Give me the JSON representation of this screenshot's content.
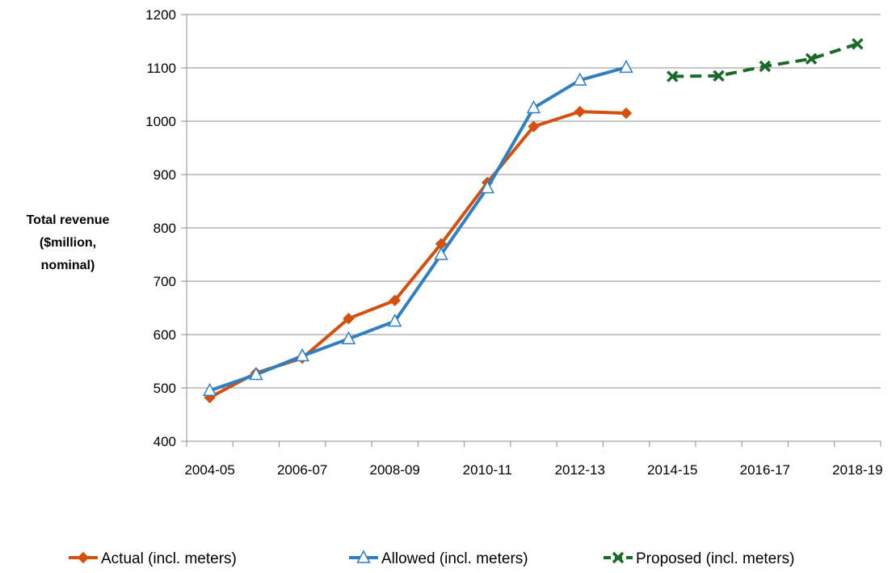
{
  "chart_data": {
    "type": "line",
    "title": "",
    "xlabel": "",
    "ylabel": "Total revenue ($million, nominal)",
    "ylabel_lines": [
      "Total revenue",
      "($million,",
      "nominal)"
    ],
    "ylim": [
      400,
      1200
    ],
    "yticks": [
      400,
      500,
      600,
      700,
      800,
      900,
      1000,
      1100,
      1200
    ],
    "x_tick_labels": [
      "2004-05",
      "2006-07",
      "2008-09",
      "2010-11",
      "2012-13",
      "2014-15",
      "2016-17",
      "2018-19"
    ],
    "categories": [
      "2004-05",
      "2005-06",
      "2006-07",
      "2007-08",
      "2008-09",
      "2009-10",
      "2010-11",
      "2011-12",
      "2012-13",
      "2013-14",
      "2014-15",
      "2015-16",
      "2016-17",
      "2017-18",
      "2018-19"
    ],
    "grid": true,
    "legend_position": "bottom",
    "series": [
      {
        "name": "Actual (incl. meters)",
        "color": "#D3500E",
        "marker": "diamond",
        "dash": "solid",
        "values": [
          482,
          528,
          556,
          630,
          664,
          770,
          885,
          990,
          1018,
          1015,
          null,
          null,
          null,
          null,
          null
        ]
      },
      {
        "name": "Allowed (incl. meters)",
        "color": "#2F7FC3",
        "marker": "triangle",
        "dash": "solid",
        "values": [
          495,
          525,
          560,
          592,
          625,
          750,
          875,
          1025,
          1077,
          1101,
          null,
          null,
          null,
          null,
          null
        ]
      },
      {
        "name": "Proposed (incl. meters)",
        "color": "#1A6B2A",
        "marker": "x",
        "dash": "dashed",
        "values": [
          null,
          null,
          null,
          null,
          null,
          null,
          null,
          null,
          null,
          null,
          1084,
          1085,
          1103,
          1117,
          1145
        ]
      }
    ]
  }
}
